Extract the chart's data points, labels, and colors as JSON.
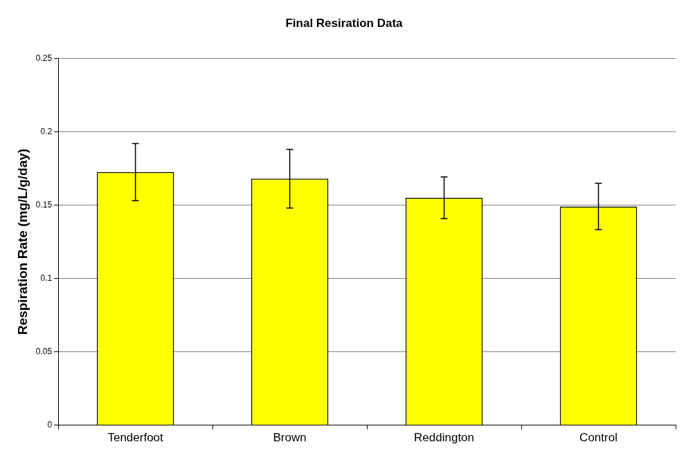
{
  "chart_data": {
    "type": "bar",
    "title": "Final Resiration Data",
    "ylabel": "Respiration Rate (mg/L/g/day)",
    "categories": [
      "Tenderfoot",
      "Brown",
      "Reddington",
      "Control"
    ],
    "values": [
      0.1725,
      0.168,
      0.155,
      0.149
    ],
    "errors": [
      0.0195,
      0.02,
      0.0142,
      0.0158
    ],
    "color": "#ffff00",
    "ylim": [
      0,
      0.25
    ],
    "yticks": [
      0,
      0.05,
      0.1,
      0.15,
      0.2,
      0.25
    ],
    "grid": "y",
    "legend": false
  }
}
